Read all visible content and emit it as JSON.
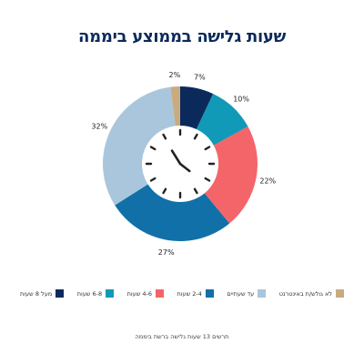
{
  "title": "שעות גלישה בממוצע ביממה",
  "chart_data": {
    "type": "pie",
    "donut": true,
    "title": "שעות גלישה בממוצע ביממה",
    "categories": [
      "מעל 8 שעות",
      "6-8 שעות",
      "4-6 שעות",
      "2-4 שעות",
      "עד שעתיים",
      "לא גולש/ת באינטרנט"
    ],
    "values": [
      7,
      10,
      22,
      27,
      32,
      2
    ],
    "value_labels": [
      "7%",
      "10%",
      "22%",
      "27%",
      "32%",
      "2%"
    ],
    "colors": [
      "#0b2a5b",
      "#1199b8",
      "#f4656a",
      "#1170a8",
      "#a9c6dc",
      "#c9ab7f"
    ],
    "legend_placement": "bottom",
    "center_icon": "clock-icon"
  },
  "legend": [
    {
      "label": "מעל 8 שעות",
      "color": "#0b2a5b"
    },
    {
      "label": "6-8 שעות",
      "color": "#1199b8"
    },
    {
      "label": "4-6 שעות",
      "color": "#f4656a"
    },
    {
      "label": "2-4 שעות",
      "color": "#1170a8"
    },
    {
      "label": "עד שעתיים",
      "color": "#a9c6dc"
    },
    {
      "label": "לא גולש/ת באינטרנט",
      "color": "#c9ab7f"
    }
  ],
  "footnote": "תרשים 13 שעות גלישה ברשת ביממה"
}
